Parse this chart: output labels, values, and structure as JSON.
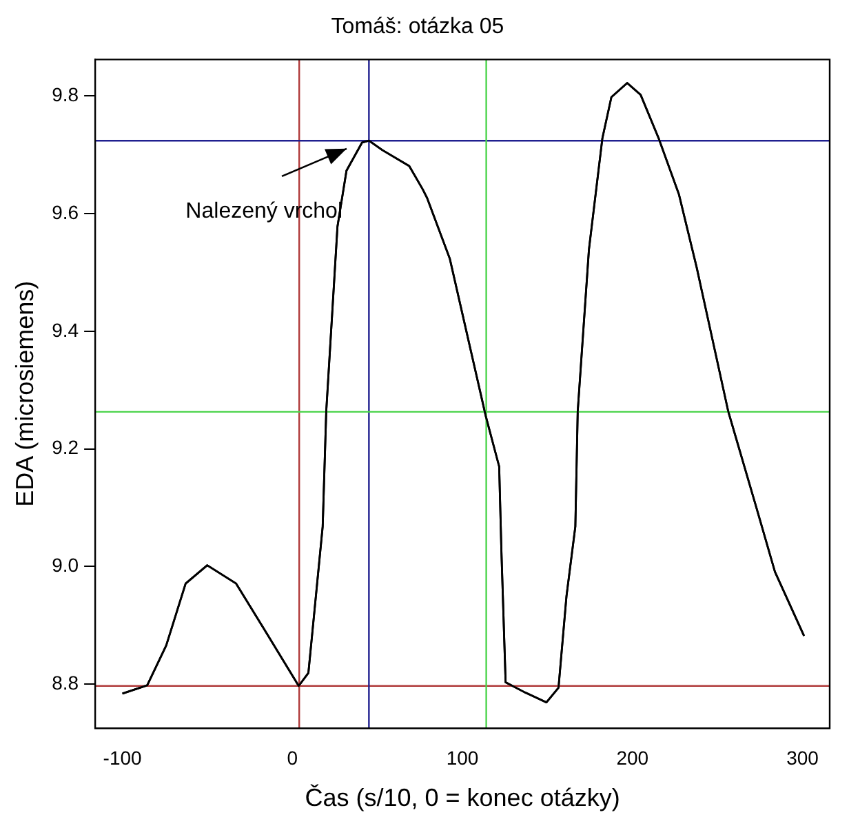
{
  "chart_data": {
    "type": "line",
    "title": "Tomáš: otázka 05",
    "xlabel": "Čas (s/10, 0 = konec otázky)",
    "ylabel": "EDA (microsiemens)",
    "xlim": [
      -116,
      316
    ],
    "xticks": [
      -100,
      0,
      100,
      200,
      300
    ],
    "ylim": [
      8.725,
      9.862
    ],
    "yticks": [
      8.8,
      {
        "value": 9,
        "label": "9.0"
      },
      9.2,
      9.4,
      9.6,
      9.8
    ],
    "grid": false,
    "legend": false,
    "marker": "none",
    "series": [
      {
        "color": "#000000",
        "x": [
          -100,
          -85.4,
          -74.2,
          -62.8,
          -50.1,
          -33.1,
          -16.1,
          3.7,
          9.4,
          17.8,
          19.9,
          26.5,
          31.8,
          41,
          45,
          52.9,
          68.7,
          76.7,
          79.3,
          92.6,
          103.1,
          113.7,
          121.6,
          122.9,
          125.4,
          136.7,
          149.4,
          156.5,
          161.2,
          166.4,
          167.8,
          174.4,
          182.3,
          187.6,
          196.9,
          204.8,
          215.4,
          227.3,
          237.8,
          256.3,
          272.2,
          283.8,
          300.9
        ],
        "values": [
          8.784,
          8.798,
          8.866,
          8.971,
          9.002,
          8.971,
          8.891,
          8.797,
          8.819,
          9.068,
          9.264,
          9.578,
          9.673,
          9.721,
          9.724,
          9.708,
          9.681,
          9.641,
          9.626,
          9.523,
          9.39,
          9.256,
          9.17,
          9.028,
          8.803,
          8.786,
          8.769,
          8.794,
          8.95,
          9.068,
          9.264,
          9.539,
          9.728,
          9.798,
          9.822,
          9.802,
          9.728,
          9.633,
          9.508,
          9.264,
          9.107,
          8.991,
          8.882
        ]
      }
    ],
    "ref_lines": [
      {
        "axis": "x",
        "value": 4,
        "color": "#b03a3a"
      },
      {
        "axis": "y",
        "value": 8.797,
        "color": "#b03a3a"
      },
      {
        "axis": "x",
        "value": 45,
        "color": "#1f1f8f"
      },
      {
        "axis": "y",
        "value": 9.724,
        "color": "#1f1f8f"
      },
      {
        "axis": "x",
        "value": 114,
        "color": "#4cd44c"
      },
      {
        "axis": "y",
        "value": 9.263,
        "color": "#4cd44c"
      }
    ],
    "annotations": [
      "Nalezený vrchol"
    ]
  }
}
